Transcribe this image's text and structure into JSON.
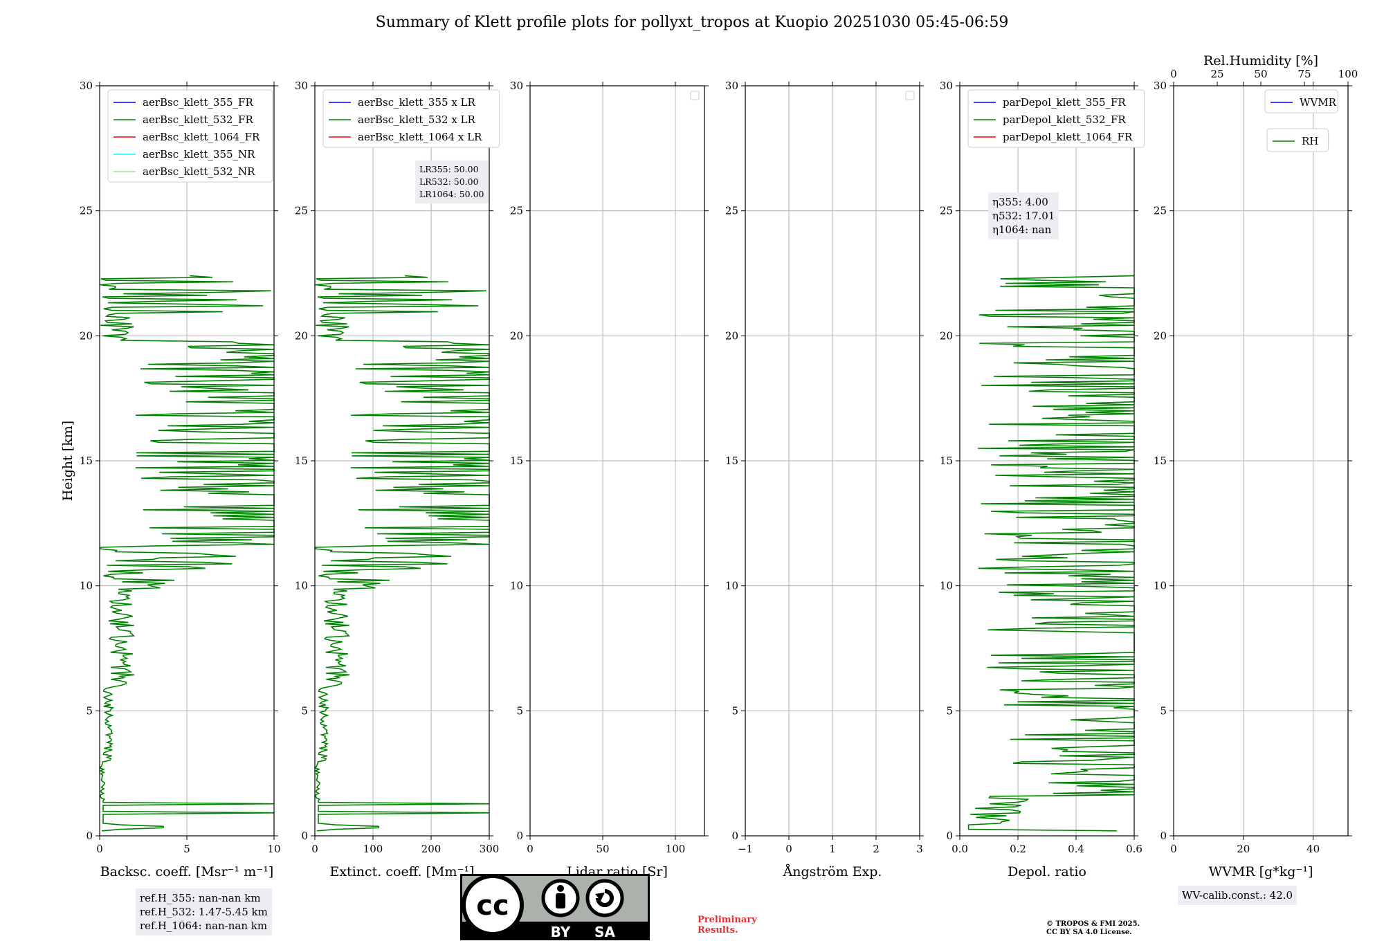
{
  "title": "Summary of Klett profile plots for pollyxt_tropos at Kuopio 20251030 05:45-06:59",
  "colors": {
    "blue": "#0000ff",
    "green": "#008000",
    "red": "#ff0000",
    "cyan": "#00ffff",
    "lightgreen": "#90ee90",
    "grid": "#b0b0b0"
  },
  "info": {
    "lr_lines": [
      "LR355: 50.00",
      "LR532: 50.00",
      "LR1064: 50.00"
    ],
    "eta_lines": [
      "η355: 4.00",
      "η532: 17.01",
      "η1064: nan"
    ],
    "ref_lines": [
      "ref.H_355: nan-nan km",
      "ref.H_532: 1.47-5.45 km",
      "ref.H_1064: nan-nan km"
    ],
    "wv_calib": "WV-calib.const.: 42.0"
  },
  "license": {
    "cc": "cc",
    "by": "BY",
    "sa": "SA"
  },
  "preliminary": [
    "Preliminary",
    "Results."
  ],
  "copyright": [
    "© TROPOS & FMI 2025.",
    "CC BY SA 4.0 License."
  ],
  "chart_data": [
    {
      "type": "line",
      "xlabel": "Backsc. coeff. [Msr⁻¹ m⁻¹]",
      "ylabel": "Height [km]",
      "xlim": [
        0,
        10
      ],
      "ylim": [
        0,
        30
      ],
      "xticks": [
        0,
        5,
        10
      ],
      "yticks": [
        0,
        5,
        10,
        15,
        20,
        25,
        30
      ],
      "legend": [
        {
          "label": "aerBsc_klett_355_FR",
          "color": "#0000ff"
        },
        {
          "label": "aerBsc_klett_532_FR",
          "color": "#008000"
        },
        {
          "label": "aerBsc_klett_1064_FR",
          "color": "#ff0000"
        },
        {
          "label": "aerBsc_klett_355_NR",
          "color": "#00ffff"
        },
        {
          "label": "aerBsc_klett_532_NR",
          "color": "#90ee90"
        }
      ],
      "series": [
        {
          "name": "aerBsc_klett_532_FR",
          "color": "#008000",
          "seed": 11,
          "profile": "bsc",
          "xmax": 10
        }
      ]
    },
    {
      "type": "line",
      "xlabel": "Extinct. coeff. [Mm⁻¹]",
      "ylabel": "",
      "xlim": [
        0,
        300
      ],
      "ylim": [
        0,
        30
      ],
      "xticks": [
        0,
        100,
        200,
        300
      ],
      "yticks": [
        0,
        5,
        10,
        15,
        20,
        25,
        30
      ],
      "legend": [
        {
          "label": "aerBsc_klett_355 x LR",
          "color": "#0000ff"
        },
        {
          "label": "aerBsc_klett_532 x LR",
          "color": "#008000"
        },
        {
          "label": "aerBsc_klett_1064 x LR",
          "color": "#ff0000"
        }
      ],
      "series": [
        {
          "name": "aerBsc_klett_532 x LR",
          "color": "#008000",
          "seed": 11,
          "profile": "bsc",
          "xmax": 300
        }
      ]
    },
    {
      "type": "line",
      "xlabel": "Lidar ratio [Sr]",
      "ylabel": "",
      "xlim": [
        0,
        120
      ],
      "ylim": [
        0,
        30
      ],
      "xticks": [
        0,
        50,
        100
      ],
      "yticks": [
        0,
        5,
        10,
        15,
        20,
        25,
        30
      ],
      "legend": [],
      "empty_legend_box": true,
      "series": []
    },
    {
      "type": "line",
      "xlabel": "Ångström Exp.",
      "ylabel": "",
      "xlim": [
        -1,
        3
      ],
      "ylim": [
        0,
        30
      ],
      "xticks": [
        -1,
        0,
        1,
        2,
        3
      ],
      "yticks": [
        0,
        5,
        10,
        15,
        20,
        25,
        30
      ],
      "legend": [],
      "empty_legend_box": true,
      "series": []
    },
    {
      "type": "line",
      "xlabel": "Depol. ratio",
      "ylabel": "",
      "xlim": [
        0,
        0.6
      ],
      "ylim": [
        0,
        30
      ],
      "xticks": [
        0.0,
        0.2,
        0.4,
        0.6
      ],
      "yticks": [
        0,
        5,
        10,
        15,
        20,
        25,
        30
      ],
      "legend": [
        {
          "label": "parDepol_klett_355_FR",
          "color": "#0000ff"
        },
        {
          "label": "parDepol_klett_532_FR",
          "color": "#008000"
        },
        {
          "label": "parDepol_klett_1064_FR",
          "color": "#ff0000"
        }
      ],
      "series": [
        {
          "name": "parDepol_klett_532_FR",
          "color": "#008000",
          "seed": 23,
          "profile": "depol",
          "xmax": 0.6
        }
      ]
    },
    {
      "type": "line",
      "xlabel": "WVMR [g*kg⁻¹]",
      "ylabel": "",
      "top_xlabel": "Rel.Humidity [%]",
      "xlim": [
        0,
        50
      ],
      "ylim": [
        0,
        30
      ],
      "xticks": [
        0,
        20,
        40
      ],
      "yticks": [
        0,
        5,
        10,
        15,
        20,
        25,
        30
      ],
      "top_xlim": [
        0,
        100
      ],
      "top_xticks": [
        0,
        25,
        50,
        75,
        100
      ],
      "legend": [
        {
          "label": "WVMR",
          "color": "#0000ff"
        }
      ],
      "legend2": [
        {
          "label": "RH",
          "color": "#008000"
        }
      ],
      "series": []
    }
  ]
}
